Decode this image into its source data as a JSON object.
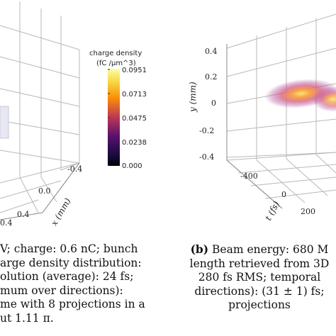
{
  "panel_a": {
    "axes": {
      "x_label": "x (mm)",
      "x_ticks": [
        "-0.4",
        "0.0",
        "0.4"
      ],
      "left_tick": "0.4"
    },
    "colorbar": {
      "title_line1": "charge density",
      "title_line2": "(fC /µm^3)",
      "ticks": [
        "0.0951",
        "0.0713",
        "0.0475",
        "0.0238",
        "0.000"
      ],
      "colormap": "inferno",
      "colors": [
        "#fcffa4",
        "#f98e09",
        "#bc3754",
        "#57106e",
        "#000004"
      ]
    },
    "caption_lines": [
      "V; charge: 0.6 nC; bunch",
      "arge density distribution:",
      "olution (average): 24 fs;",
      "mum over directions):",
      "me with 8 projections in a",
      "ut 1.11 π."
    ]
  },
  "panel_b": {
    "axes": {
      "y_label": "y (mm)",
      "y_ticks": [
        "0.4",
        "0.2",
        "0",
        "-0.2",
        "-0.4"
      ],
      "t_label": "t (fs)",
      "t_ticks": [
        "-400",
        "0",
        "200"
      ]
    },
    "caption_lines": [
      {
        "bold": "(b)",
        "text": " Beam energy: 680 M"
      },
      {
        "bold": "",
        "text": "length retrieved from 3D"
      },
      {
        "bold": "",
        "text": "280 fs RMS; temporal"
      },
      {
        "bold": "",
        "text": "directions): (31 ± 1) fs; "
      },
      {
        "bold": "",
        "text": "projections"
      }
    ]
  }
}
